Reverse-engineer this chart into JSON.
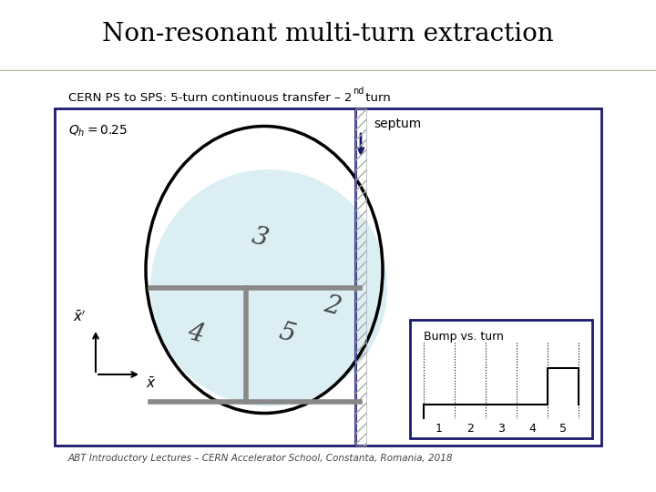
{
  "title": "Non-resonant multi-turn extraction",
  "subtitle_main": "CERN PS to SPS: 5-turn continuous transfer – 2",
  "subtitle_sup": "nd",
  "subtitle_end": " turn",
  "footer": "ABT Introductory Lectures – CERN Accelerator School, Constanta, Romania, 2018",
  "qh_text": "Q",
  "qh_sub": "h",
  "qh_val": " = 0.25",
  "septum_label": "septum",
  "bump_title": "Bump vs. turn",
  "bg_title": "#e8eedb",
  "bg_main": "#ffffff",
  "border_color": "#1a1a6e",
  "ellipse_color": "#000000",
  "septum_color": "#1a1a6e",
  "arrow_color": "#1a1a6e",
  "fill_color": "#cce8f0",
  "sep_color": "#888888",
  "text_color": "#000000",
  "hatch_color": "#aaaaaa"
}
